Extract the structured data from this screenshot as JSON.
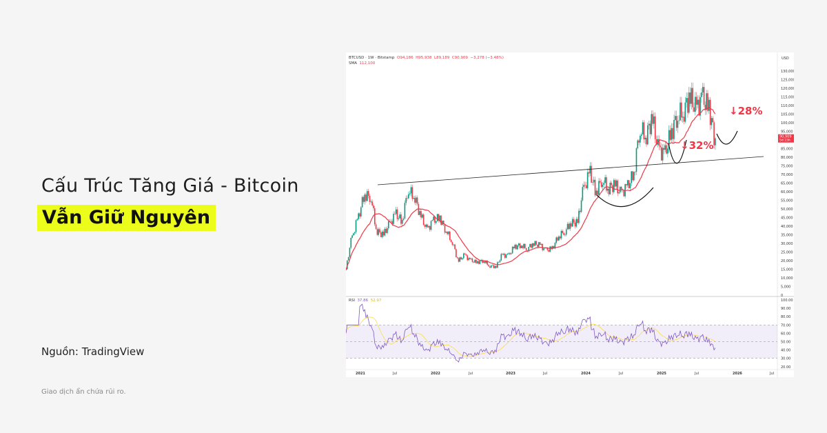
{
  "headline": {
    "line1": "Cấu Trúc Tăng Giá - Bitcoin",
    "line2": "Vẫn Giữ Nguyên",
    "highlight_color": "#ecfd1c"
  },
  "source": "Nguồn: TradingView",
  "disclaimer": "Giao dịch ẩn chứa rủi ro.",
  "chart_header": {
    "symbol": "BTCUSD · 1W · Bitstamp",
    "open": "O94,186",
    "high": "H95,938",
    "low": "L89,189",
    "close": "C90,909",
    "change": "−3,278 (−3.48%)",
    "sma_label": "SMA",
    "sma_value": "112,100",
    "rsi_label": "RSI",
    "rsi_value": "37.86",
    "rsi_ma_value": "52.97"
  },
  "chart_data": {
    "type": "candlestick",
    "currency": "USD",
    "last_price_label": "90,909",
    "last_price_countdown": "5d 15h",
    "y_ticks": [
      "130,000",
      "125,000",
      "120,000",
      "115,000",
      "110,000",
      "105,000",
      "100,000",
      "95,000",
      "85,000",
      "80,000",
      "75,000",
      "70,000",
      "65,000",
      "60,000",
      "55,000",
      "50,000",
      "45,000",
      "40,000",
      "35,000",
      "30,000",
      "25,000",
      "20,000",
      "15,000",
      "10,000",
      "5,000",
      "0"
    ],
    "rsi_ticks": [
      "100.00",
      "90.00",
      "80.00",
      "70.00",
      "60.00",
      "50.00",
      "40.00",
      "30.00",
      "20.00"
    ],
    "x_ticks": [
      "2021",
      "Jul",
      "2022",
      "Jul",
      "2023",
      "Jul",
      "2024",
      "Jul",
      "2025",
      "Jul",
      "2026",
      "Jul"
    ],
    "monthly_close": {
      "start": "2020-12",
      "values": [
        15000,
        33000,
        45000,
        58000,
        57000,
        37000,
        35000,
        41000,
        47000,
        43000,
        61000,
        57000,
        46000,
        38000,
        43000,
        45000,
        38000,
        31000,
        20000,
        23000,
        20000,
        19000,
        20000,
        17000,
        16500,
        23000,
        23000,
        28000,
        29000,
        27000,
        30000,
        29000,
        26000,
        27000,
        34000,
        37000,
        42000,
        42000,
        61000,
        71000,
        60000,
        67000,
        62000,
        64000,
        59000,
        63000,
        70000,
        96000,
        93000,
        102000,
        84000,
        82000,
        94000,
        104000,
        107000,
        115000,
        108000,
        114000,
        109000,
        91000
      ]
    },
    "annotations": {
      "drop1": "↓32%",
      "drop2": "↓28%"
    },
    "colors": {
      "up": "#089981",
      "down": "#f23645",
      "sma": "#f23645",
      "rsi": "#7e57c2",
      "rsi_ma": "#fdd835",
      "trendline": "#000000"
    }
  }
}
